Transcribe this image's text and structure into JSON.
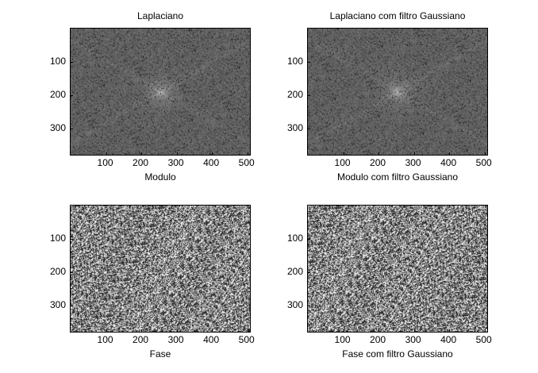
{
  "figure": {
    "panels": [
      {
        "title": "Laplaciano",
        "xlabel": "Modulo",
        "image": "spectrum-magnitude"
      },
      {
        "title": "Laplaciano com filtro Gaussiano",
        "xlabel": "Modulo com filtro Gaussiano",
        "image": "spectrum-magnitude"
      },
      {
        "title": "",
        "xlabel": "Fase",
        "image": "spectrum-phase"
      },
      {
        "title": "",
        "xlabel": "Fase com filtro Gaussiano",
        "image": "spectrum-phase"
      }
    ]
  },
  "axes": {
    "x_ticks": [
      "100",
      "200",
      "300",
      "400",
      "500"
    ],
    "y_ticks": [
      "100",
      "200",
      "300"
    ],
    "x_range": [
      0,
      512
    ],
    "y_range": [
      0,
      384
    ]
  },
  "colors": {
    "background": "#ffffff",
    "axes_border": "#000000"
  }
}
